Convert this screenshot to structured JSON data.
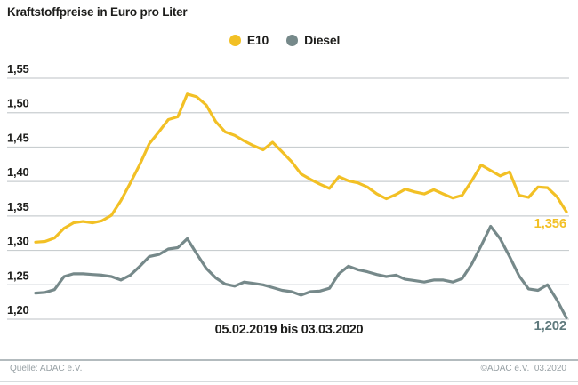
{
  "title": "Kraftstoffpreise in Euro pro Liter",
  "footer": {
    "source_left": "Quelle: ADAC e.V.",
    "copyright_right": "©ADAC e.V.  03.2020"
  },
  "colors": {
    "e10": "#F2C025",
    "diesel": "#76898A",
    "diesel_label": "#5F7A7D",
    "grid": "#C9CED0",
    "text": "#1D1D1B",
    "footer_text": "#98A1A5",
    "divider": "#B3BBBE",
    "bottom_line": "#D8DCDE",
    "background": "#FFFFFF"
  },
  "chart_data": {
    "type": "line",
    "title": "Kraftstoffpreise in Euro pro Liter",
    "xlabel": "05.02.2019 bis 03.03.2020",
    "ylabel": "Euro pro Liter",
    "ylim": [
      1.2,
      1.55
    ],
    "grid": "horizontal",
    "legend_position": "top-center",
    "x_sampling": "weekly, 57 points from 05.02.2019 to 03.03.2020",
    "yticks": [
      {
        "label": "1,55",
        "value": 1.55
      },
      {
        "label": "1,50",
        "value": 1.5
      },
      {
        "label": "1,45",
        "value": 1.45
      },
      {
        "label": "1,40",
        "value": 1.4
      },
      {
        "label": "1,35",
        "value": 1.35
      },
      {
        "label": "1,30",
        "value": 1.3
      },
      {
        "label": "1,25",
        "value": 1.25
      },
      {
        "label": "1,20",
        "value": 1.2
      }
    ],
    "series": [
      {
        "name": "E10",
        "color": "#F2C025",
        "end_label": "1,356",
        "last_value": 1.356,
        "values": [
          1.312,
          1.313,
          1.318,
          1.332,
          1.34,
          1.342,
          1.34,
          1.343,
          1.351,
          1.372,
          1.398,
          1.425,
          1.455,
          1.472,
          1.49,
          1.494,
          1.527,
          1.523,
          1.511,
          1.487,
          1.472,
          1.467,
          1.459,
          1.452,
          1.446,
          1.457,
          1.443,
          1.429,
          1.411,
          1.403,
          1.396,
          1.39,
          1.407,
          1.401,
          1.398,
          1.392,
          1.382,
          1.375,
          1.381,
          1.389,
          1.385,
          1.382,
          1.388,
          1.382,
          1.376,
          1.38,
          1.401,
          1.424,
          1.416,
          1.408,
          1.414,
          1.38,
          1.377,
          1.392,
          1.391,
          1.378,
          1.356
        ]
      },
      {
        "name": "Diesel",
        "color": "#76898A",
        "end_label": "1,202",
        "last_value": 1.202,
        "values": [
          1.238,
          1.239,
          1.243,
          1.262,
          1.266,
          1.266,
          1.265,
          1.264,
          1.262,
          1.257,
          1.264,
          1.277,
          1.291,
          1.294,
          1.302,
          1.304,
          1.317,
          1.295,
          1.274,
          1.26,
          1.251,
          1.248,
          1.254,
          1.252,
          1.25,
          1.246,
          1.242,
          1.24,
          1.235,
          1.24,
          1.241,
          1.245,
          1.266,
          1.277,
          1.272,
          1.269,
          1.265,
          1.262,
          1.264,
          1.258,
          1.256,
          1.254,
          1.257,
          1.257,
          1.254,
          1.259,
          1.28,
          1.307,
          1.335,
          1.317,
          1.291,
          1.263,
          1.244,
          1.242,
          1.25,
          1.228,
          1.202
        ]
      }
    ]
  }
}
